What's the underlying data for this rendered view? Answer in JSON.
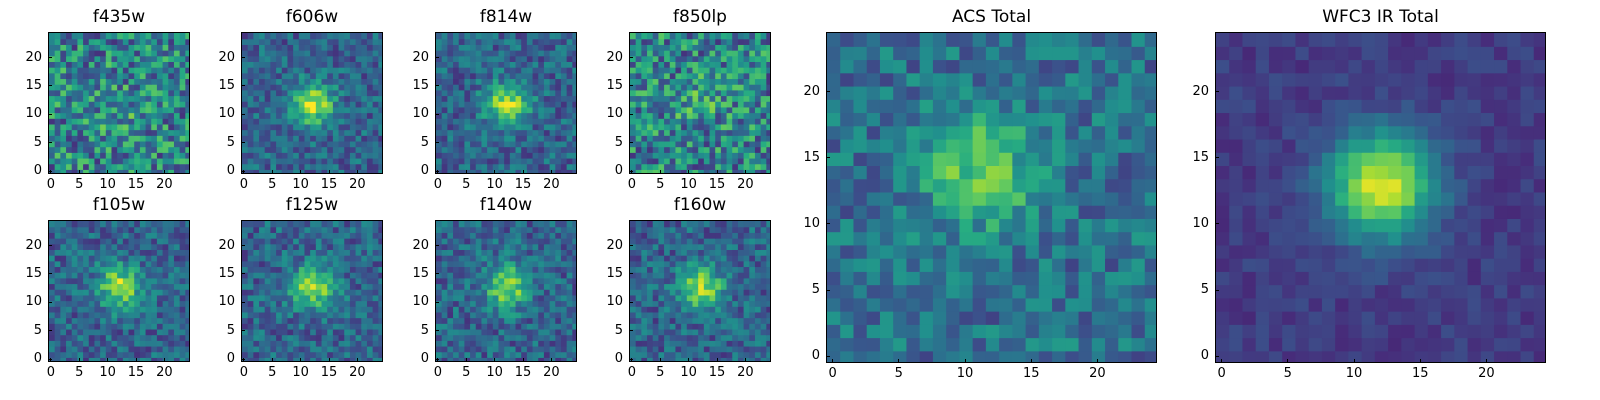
{
  "chart_data": [
    {
      "type": "heatmap",
      "title": "f435w",
      "xticks": [
        "0",
        "5",
        "10",
        "15",
        "20"
      ],
      "yticks": [
        "0",
        "5",
        "10",
        "15",
        "20"
      ],
      "xlim": [
        -0.5,
        24.5
      ],
      "ylim": [
        -0.5,
        24.5
      ],
      "grid": 25,
      "colormap": "viridis",
      "pattern": "noise",
      "peak": [
        12,
        11
      ]
    },
    {
      "type": "heatmap",
      "title": "f606w",
      "xticks": [
        "0",
        "5",
        "10",
        "15",
        "20"
      ],
      "yticks": [
        "0",
        "5",
        "10",
        "15",
        "20"
      ],
      "xlim": [
        -0.5,
        24.5
      ],
      "ylim": [
        -0.5,
        24.5
      ],
      "grid": 25,
      "colormap": "viridis",
      "pattern": "source",
      "peak": [
        12,
        12
      ]
    },
    {
      "type": "heatmap",
      "title": "f814w",
      "xticks": [
        "0",
        "5",
        "10",
        "15",
        "20"
      ],
      "yticks": [
        "0",
        "5",
        "10",
        "15",
        "20"
      ],
      "xlim": [
        -0.5,
        24.5
      ],
      "ylim": [
        -0.5,
        24.5
      ],
      "grid": 25,
      "colormap": "viridis",
      "pattern": "source",
      "peak": [
        12,
        12
      ]
    },
    {
      "type": "heatmap",
      "title": "f850lp",
      "xticks": [
        "0",
        "5",
        "10",
        "15",
        "20"
      ],
      "yticks": [
        "0",
        "5",
        "10",
        "15",
        "20"
      ],
      "xlim": [
        -0.5,
        24.5
      ],
      "ylim": [
        -0.5,
        24.5
      ],
      "grid": 25,
      "colormap": "viridis",
      "pattern": "noise",
      "peak": [
        12,
        12
      ]
    },
    {
      "type": "heatmap",
      "title": "ACS Total",
      "xticks": [
        "0",
        "5",
        "10",
        "15",
        "20"
      ],
      "yticks": [
        "0",
        "5",
        "10",
        "15",
        "20"
      ],
      "xlim": [
        -0.5,
        24.5
      ],
      "ylim": [
        -0.5,
        24.5
      ],
      "grid": 25,
      "colormap": "viridis",
      "pattern": "source-weak",
      "peak": [
        11,
        14
      ]
    },
    {
      "type": "heatmap",
      "title": "f105w",
      "xticks": [
        "0",
        "5",
        "10",
        "15",
        "20"
      ],
      "yticks": [
        "0",
        "5",
        "10",
        "15",
        "20"
      ],
      "xlim": [
        -0.5,
        24.5
      ],
      "ylim": [
        -0.5,
        24.5
      ],
      "grid": 25,
      "colormap": "viridis",
      "pattern": "source",
      "peak": [
        12,
        13
      ]
    },
    {
      "type": "heatmap",
      "title": "f125w",
      "xticks": [
        "0",
        "5",
        "10",
        "15",
        "20"
      ],
      "yticks": [
        "0",
        "5",
        "10",
        "15",
        "20"
      ],
      "xlim": [
        -0.5,
        24.5
      ],
      "ylim": [
        -0.5,
        24.5
      ],
      "grid": 25,
      "colormap": "viridis",
      "pattern": "source",
      "peak": [
        12,
        13
      ]
    },
    {
      "type": "heatmap",
      "title": "f140w",
      "xticks": [
        "0",
        "5",
        "10",
        "15",
        "20"
      ],
      "yticks": [
        "0",
        "5",
        "10",
        "15",
        "20"
      ],
      "xlim": [
        -0.5,
        24.5
      ],
      "ylim": [
        -0.5,
        24.5
      ],
      "grid": 25,
      "colormap": "viridis",
      "pattern": "source",
      "peak": [
        12,
        13
      ]
    },
    {
      "type": "heatmap",
      "title": "f160w",
      "xticks": [
        "0",
        "5",
        "10",
        "15",
        "20"
      ],
      "yticks": [
        "0",
        "5",
        "10",
        "15",
        "20"
      ],
      "xlim": [
        -0.5,
        24.5
      ],
      "ylim": [
        -0.5,
        24.5
      ],
      "grid": 25,
      "colormap": "viridis",
      "pattern": "source",
      "peak": [
        12,
        13
      ]
    },
    {
      "type": "heatmap",
      "title": "WFC3 IR Total",
      "xticks": [
        "0",
        "5",
        "10",
        "15",
        "20"
      ],
      "yticks": [
        "0",
        "5",
        "10",
        "15",
        "20"
      ],
      "xlim": [
        -0.5,
        24.5
      ],
      "ylim": [
        -0.5,
        24.5
      ],
      "grid": 25,
      "colormap": "viridis",
      "pattern": "smooth-source",
      "peak": [
        12,
        13
      ]
    }
  ]
}
